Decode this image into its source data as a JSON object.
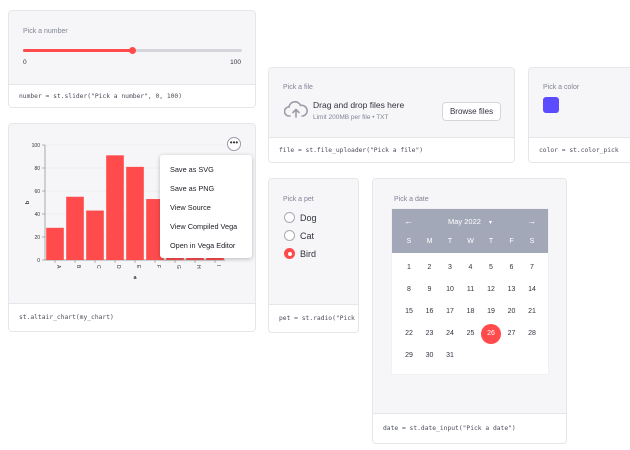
{
  "slider": {
    "label": "Pick a number",
    "min_label": "0",
    "max_label": "100",
    "value": 0.5,
    "code": "number = st.slider(\"Pick a number\", 0, 100)"
  },
  "chart": {
    "code": "st.altair_chart(my_chart)",
    "more_label": "•••",
    "menu": [
      "Save as SVG",
      "Save as PNG",
      "View Source",
      "View Compiled Vega",
      "Open in Vega Editor"
    ]
  },
  "chart_data": {
    "type": "bar",
    "categories": [
      "A",
      "B",
      "C",
      "D",
      "E",
      "F",
      "G",
      "H",
      "I"
    ],
    "values": [
      28,
      55,
      43,
      91,
      81,
      53,
      19,
      87,
      52
    ],
    "xlabel": "a",
    "ylabel": "b",
    "ylim": [
      0,
      100
    ],
    "yticks": [
      "0",
      "20",
      "40",
      "60",
      "80",
      "100"
    ],
    "color": "#ff4b4b"
  },
  "uploader": {
    "label": "Pick a file",
    "drop_text": "Drag and drop files here",
    "limit_text": "Limit 200MB per file • TXT",
    "button": "Browse files",
    "code": "file = st.file_uploader(\"Pick a file\")"
  },
  "color": {
    "label": "Pick a color",
    "value": "#5b4cff",
    "code": "color = st.color_pick"
  },
  "radio": {
    "label": "Pick a pet",
    "options": [
      "Dog",
      "Cat",
      "Bird"
    ],
    "selected": 2,
    "code": "pet = st.radio(\"Pick"
  },
  "date": {
    "label": "Pick a date",
    "month": "May 2022",
    "caret": "▾",
    "prev": "←",
    "next": "→",
    "weekdays": [
      "S",
      "M",
      "T",
      "W",
      "T",
      "F",
      "S"
    ],
    "weeks": [
      [
        "1",
        "2",
        "3",
        "4",
        "5",
        "6",
        "7"
      ],
      [
        "8",
        "9",
        "10",
        "11",
        "12",
        "13",
        "14"
      ],
      [
        "15",
        "16",
        "17",
        "18",
        "19",
        "20",
        "21"
      ],
      [
        "22",
        "23",
        "24",
        "25",
        "26",
        "27",
        "28"
      ],
      [
        "29",
        "30",
        "31",
        "",
        "",
        "",
        ""
      ]
    ],
    "selected": "26",
    "code": "date = st.date_input(\"Pick a date\")"
  },
  "colors": {
    "accent": "#ff4b4b",
    "calendar_header": "#a3a8b8"
  }
}
